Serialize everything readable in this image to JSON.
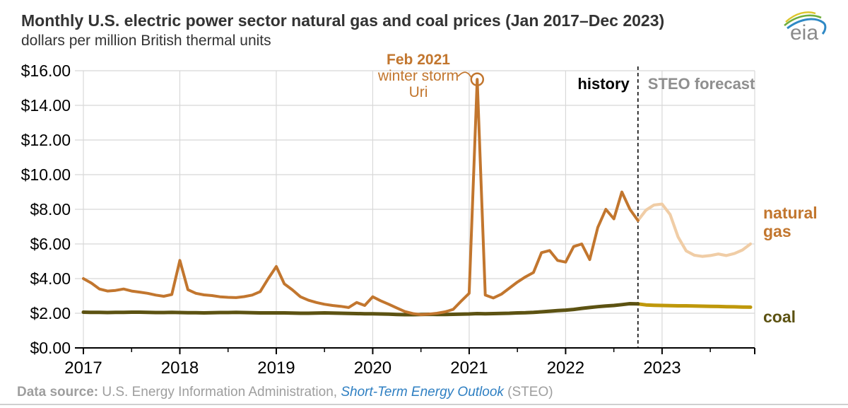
{
  "header": {
    "title": "Monthly U.S. electric power sector natural gas and coal prices (Jan 2017–Dec 2023)",
    "subtitle": "dollars per million British thermal units",
    "logo_text": "eia"
  },
  "footer": {
    "label": "Data source:",
    "org": " U.S. Energy Information Administration, ",
    "link_text": "Short-Term Energy Outlook",
    "suffix": " (STEO)"
  },
  "colors": {
    "gas": "#c2762e",
    "gas_forecast": "#f0cda6",
    "coal": "#5c5212",
    "coal_forecast": "#bf980b",
    "gridline": "#d8d8d8",
    "axis": "#000000",
    "divider": "#1a1a1a",
    "history_label": "#000000",
    "forecast_label": "#8f8f8f",
    "annotation": "#c2762e",
    "link_blue": "#2e7fc2",
    "title_text": "#333333",
    "footer_gray": "#9e9e9e"
  },
  "chart_data": {
    "type": "line",
    "title": "Monthly U.S. electric power sector natural gas and coal prices (Jan 2017–Dec 2023)",
    "ylabel": "dollars per million British thermal units",
    "ylim": [
      0,
      16
    ],
    "y_tick_step": 2,
    "y_tick_labels": [
      "$16.00",
      "$14.00",
      "$12.00",
      "$10.00",
      "$8.00",
      "$6.00",
      "$4.00",
      "$2.00",
      "$0.00"
    ],
    "x_year_labels": [
      "2017",
      "2018",
      "2019",
      "2020",
      "2021",
      "2022",
      "2023"
    ],
    "x_start": "Jan 2017",
    "x_end": "Dec 2023",
    "months_total": 84,
    "forecast_start_month_index": 69,
    "history_period": "Jan 2017–Oct 2022",
    "forecast_period": "Nov 2022–Dec 2023",
    "divider": {
      "history_label": "history",
      "forecast_label": "STEO forecast"
    },
    "annotation": {
      "title": "Feb 2021",
      "lines": [
        "winter storm",
        "Uri"
      ],
      "value": 15.5,
      "month_index": 49
    },
    "legend_position": "right-of-plot",
    "grid": true,
    "series": [
      {
        "name": "natural gas",
        "label_lines": [
          "natural",
          "gas"
        ],
        "history": [
          4.0,
          3.74,
          3.4,
          3.28,
          3.32,
          3.4,
          3.28,
          3.22,
          3.15,
          3.05,
          2.98,
          3.08,
          5.05,
          3.36,
          3.15,
          3.06,
          3.02,
          2.95,
          2.92,
          2.9,
          2.96,
          3.05,
          3.25,
          4.0,
          4.7,
          3.7,
          3.35,
          2.95,
          2.75,
          2.62,
          2.52,
          2.45,
          2.4,
          2.33,
          2.62,
          2.45,
          2.95,
          2.72,
          2.52,
          2.3,
          2.1,
          1.98,
          1.92,
          1.95,
          2.0,
          2.08,
          2.22,
          2.7,
          3.15,
          15.5,
          3.05,
          2.88,
          3.1,
          3.45,
          3.8,
          4.1,
          4.35,
          5.5,
          5.62,
          5.05,
          4.95,
          5.85,
          6.0,
          5.1,
          6.95,
          8.0,
          7.45,
          9.0,
          8.0,
          7.35
        ],
        "forecast": [
          7.35,
          7.95,
          8.25,
          8.3,
          7.7,
          6.4,
          5.6,
          5.35,
          5.28,
          5.33,
          5.42,
          5.33,
          5.45,
          5.65,
          6.0
        ]
      },
      {
        "name": "coal",
        "label_lines": [
          "coal"
        ],
        "history": [
          2.06,
          2.05,
          2.05,
          2.04,
          2.05,
          2.05,
          2.06,
          2.06,
          2.05,
          2.04,
          2.04,
          2.05,
          2.04,
          2.03,
          2.03,
          2.02,
          2.03,
          2.04,
          2.04,
          2.05,
          2.04,
          2.03,
          2.02,
          2.02,
          2.02,
          2.02,
          2.01,
          2.0,
          2.0,
          2.01,
          2.02,
          2.01,
          2.0,
          1.99,
          1.98,
          1.97,
          1.97,
          1.96,
          1.95,
          1.93,
          1.92,
          1.92,
          1.93,
          1.94,
          1.93,
          1.93,
          1.94,
          1.95,
          1.96,
          1.98,
          1.97,
          1.98,
          1.99,
          2.0,
          2.02,
          2.03,
          2.05,
          2.08,
          2.12,
          2.15,
          2.18,
          2.22,
          2.28,
          2.33,
          2.38,
          2.42,
          2.45,
          2.5,
          2.55,
          2.54
        ],
        "forecast": [
          2.54,
          2.48,
          2.46,
          2.45,
          2.44,
          2.43,
          2.43,
          2.42,
          2.41,
          2.4,
          2.39,
          2.38,
          2.37,
          2.36,
          2.35
        ]
      }
    ]
  }
}
